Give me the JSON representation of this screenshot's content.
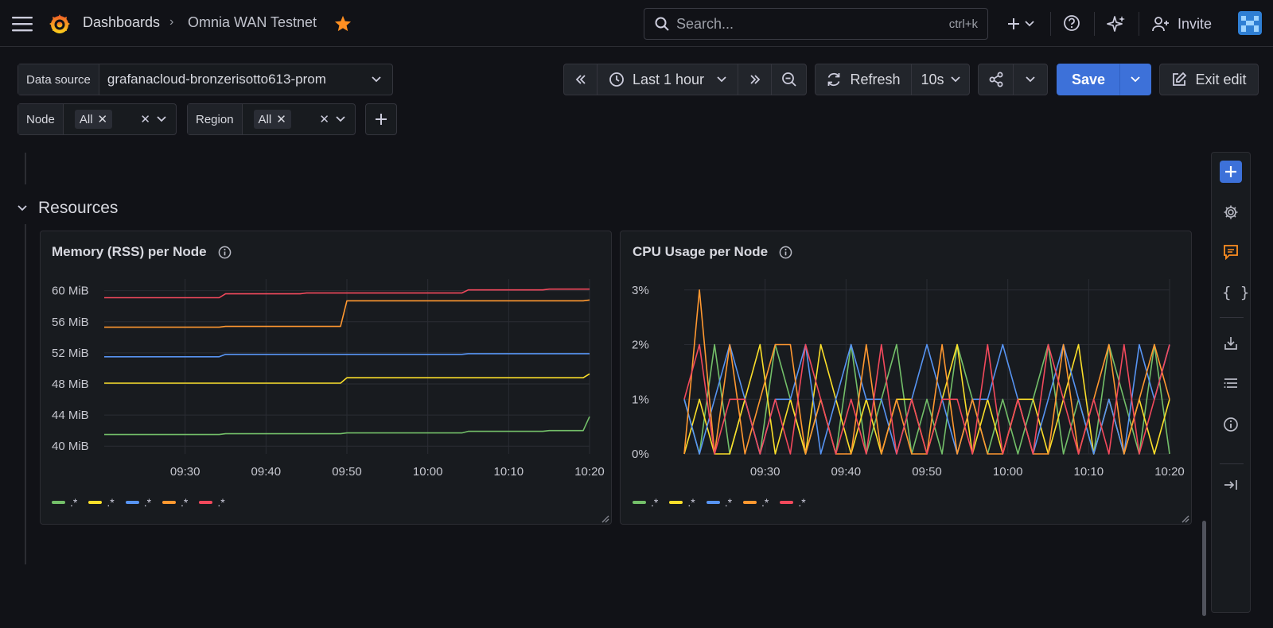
{
  "breadcrumb": {
    "root": "Dashboards",
    "current": "Omnia WAN Testnet"
  },
  "search": {
    "placeholder": "Search...",
    "shortcut": "ctrl+k"
  },
  "header": {
    "invite_label": "Invite"
  },
  "datasource": {
    "label": "Data source",
    "value": "grafanacloud-bronzerisotto613-prom"
  },
  "variables": [
    {
      "label": "Node",
      "value": "All"
    },
    {
      "label": "Region",
      "value": "All"
    }
  ],
  "time": {
    "range": "Last 1 hour",
    "refresh_label": "Refresh",
    "interval": "10s"
  },
  "actions": {
    "save": "Save",
    "exit_edit": "Exit edit"
  },
  "row": {
    "title": "Resources"
  },
  "colors": {
    "green": "#73bf69",
    "yellow": "#fade2a",
    "blue": "#5794f2",
    "orange": "#ff9830",
    "red": "#f2495c",
    "accent": "#3d71d9"
  },
  "panels": {
    "memory": {
      "title": "Memory (RSS) per Node",
      "legend": [
        ".*",
        ".*",
        ".*",
        ".*",
        ".*"
      ],
      "chart_data": {
        "type": "line",
        "x": [
          "09:20",
          "09:25",
          "09:30",
          "09:35",
          "09:40",
          "09:45",
          "09:50",
          "09:55",
          "10:00",
          "10:05",
          "10:10",
          "10:15",
          "10:20"
        ],
        "xticks": [
          "09:30",
          "09:40",
          "09:50",
          "10:00",
          "10:10",
          "10:20"
        ],
        "yticks": [
          "40 MiB",
          "44 MiB",
          "48 MiB",
          "52 MiB",
          "56 MiB",
          "60 MiB"
        ],
        "ylim": [
          39,
          61.5
        ],
        "unit": "MiB",
        "series": [
          {
            "color": "green",
            "values": [
              41.5,
              41.5,
              41.5,
              41.6,
              41.6,
              41.6,
              41.7,
              41.7,
              41.7,
              41.9,
              41.9,
              42.0,
              43.8
            ]
          },
          {
            "color": "yellow",
            "values": [
              48.1,
              48.1,
              48.1,
              48.1,
              48.1,
              48.1,
              48.8,
              48.8,
              48.8,
              48.8,
              48.8,
              48.8,
              49.3
            ]
          },
          {
            "color": "blue",
            "values": [
              51.5,
              51.5,
              51.5,
              51.8,
              51.8,
              51.8,
              51.8,
              51.8,
              51.8,
              51.9,
              51.9,
              51.9,
              51.9
            ]
          },
          {
            "color": "orange",
            "values": [
              55.3,
              55.3,
              55.3,
              55.4,
              55.4,
              55.4,
              58.7,
              58.7,
              58.7,
              58.7,
              58.7,
              58.7,
              58.8
            ]
          },
          {
            "color": "red",
            "values": [
              59.1,
              59.1,
              59.1,
              59.6,
              59.6,
              59.7,
              59.7,
              59.7,
              59.7,
              60.1,
              60.1,
              60.2,
              60.2
            ]
          }
        ]
      }
    },
    "cpu": {
      "title": "CPU Usage per Node",
      "legend": [
        ".*",
        ".*",
        ".*",
        ".*",
        ".*"
      ],
      "chart_data": {
        "type": "line",
        "xlim": [
          "09:20",
          "10:20"
        ],
        "xticks": [
          "09:30",
          "09:40",
          "09:50",
          "10:00",
          "10:10",
          "10:20"
        ],
        "yticks": [
          "0%",
          "1%",
          "2%",
          "3%"
        ],
        "ylim": [
          0,
          3.2
        ],
        "unit": "%",
        "series": [
          {
            "color": "green",
            "values": [
              1,
              0,
              2,
              0,
              1,
              0,
              2,
              1,
              0,
              1,
              0,
              2,
              0,
              1,
              2,
              0,
              1,
              0,
              2,
              1,
              0,
              1,
              0,
              1,
              2,
              0,
              1,
              0,
              2,
              1,
              0,
              2,
              0
            ]
          },
          {
            "color": "yellow",
            "values": [
              0,
              1,
              0,
              0,
              1,
              2,
              0,
              1,
              0,
              2,
              1,
              0,
              1,
              0,
              1,
              1,
              0,
              1,
              2,
              0,
              1,
              0,
              1,
              1,
              0,
              1,
              2,
              0,
              1,
              0,
              1,
              0,
              1
            ]
          },
          {
            "color": "blue",
            "values": [
              1,
              0,
              1,
              2,
              1,
              0,
              1,
              1,
              2,
              0,
              1,
              2,
              1,
              1,
              0,
              1,
              2,
              1,
              0,
              1,
              1,
              2,
              1,
              0,
              1,
              2,
              1,
              0,
              1,
              0,
              2,
              1,
              2
            ]
          },
          {
            "color": "orange",
            "values": [
              0,
              3,
              0,
              2,
              0,
              1,
              2,
              2,
              0,
              1,
              0,
              0,
              2,
              0,
              1,
              0,
              0,
              2,
              0,
              1,
              0,
              0,
              1,
              0,
              0,
              2,
              0,
              1,
              2,
              0,
              1,
              2,
              1
            ]
          },
          {
            "color": "red",
            "values": [
              1,
              2,
              0,
              1,
              1,
              0,
              1,
              0,
              2,
              1,
              0,
              1,
              0,
              2,
              0,
              1,
              0,
              1,
              1,
              0,
              2,
              0,
              1,
              0,
              2,
              1,
              0,
              1,
              0,
              2,
              0,
              1,
              2
            ]
          }
        ]
      }
    }
  }
}
